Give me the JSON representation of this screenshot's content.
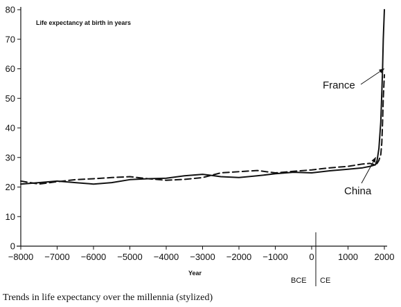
{
  "caption": "Trends in life expectancy over the millennia (stylized)",
  "chart_data": {
    "type": "line",
    "title": "Life expectancy at birth in years",
    "xlabel": "Year",
    "ylabel": "",
    "xlim": [
      -8000,
      2000
    ],
    "ylim": [
      0,
      80
    ],
    "x_ticks": [
      -8000,
      -7000,
      -6000,
      -5000,
      -4000,
      -3000,
      -2000,
      -1000,
      0,
      1000,
      2000
    ],
    "x_tick_labels": [
      "−8000",
      "−7000",
      "−6000",
      "−5000",
      "−4000",
      "−3000",
      "−2000",
      "−1000",
      "0",
      "1000",
      "2000"
    ],
    "y_ticks": [
      0,
      10,
      20,
      30,
      40,
      50,
      60,
      70,
      80
    ],
    "y_tick_labels": [
      "0",
      "10",
      "20",
      "30",
      "40",
      "50",
      "60",
      "70",
      "80"
    ],
    "era_labels": {
      "before": "BCE",
      "after": "CE"
    },
    "grid": false,
    "series": [
      {
        "name": "France",
        "style": "solid",
        "x": [
          -8000,
          -7500,
          -7000,
          -6500,
          -6000,
          -5500,
          -5000,
          -4500,
          -4000,
          -3500,
          -3000,
          -2800,
          -2500,
          -2000,
          -1500,
          -1000,
          -500,
          0,
          500,
          1000,
          1400,
          1600,
          1750,
          1800,
          1850,
          1900,
          1930,
          1950,
          1970,
          2000
        ],
        "y": [
          21,
          21.5,
          22,
          21.5,
          21,
          21.5,
          22.5,
          22.8,
          23,
          23.8,
          24.3,
          24,
          23.5,
          23.2,
          23.8,
          24.5,
          25,
          24.8,
          25.5,
          26,
          26.5,
          27,
          27.5,
          29,
          33,
          42,
          52,
          60,
          70,
          80
        ]
      },
      {
        "name": "China",
        "style": "dashed",
        "x": [
          -8000,
          -7500,
          -7000,
          -6500,
          -6000,
          -5500,
          -5000,
          -4500,
          -4000,
          -3500,
          -3000,
          -2500,
          -2000,
          -1500,
          -1000,
          -500,
          0,
          500,
          1000,
          1400,
          1600,
          1750,
          1800,
          1850,
          1900,
          1930,
          1950,
          1970,
          2000
        ],
        "y": [
          22,
          21,
          21.8,
          22.5,
          22.8,
          23.2,
          23.5,
          22.8,
          22.3,
          22.6,
          23.2,
          24.8,
          25.2,
          25.6,
          24.8,
          25.3,
          25.8,
          26.5,
          27,
          27.8,
          28,
          27.5,
          28,
          29,
          31,
          35,
          42,
          50,
          58
        ]
      }
    ],
    "annotations": [
      {
        "text": "France",
        "series": "France",
        "arrow_to": [
          1990,
          60
        ]
      },
      {
        "text": "China",
        "series": "China",
        "arrow_to": [
          1760,
          30
        ]
      }
    ]
  }
}
